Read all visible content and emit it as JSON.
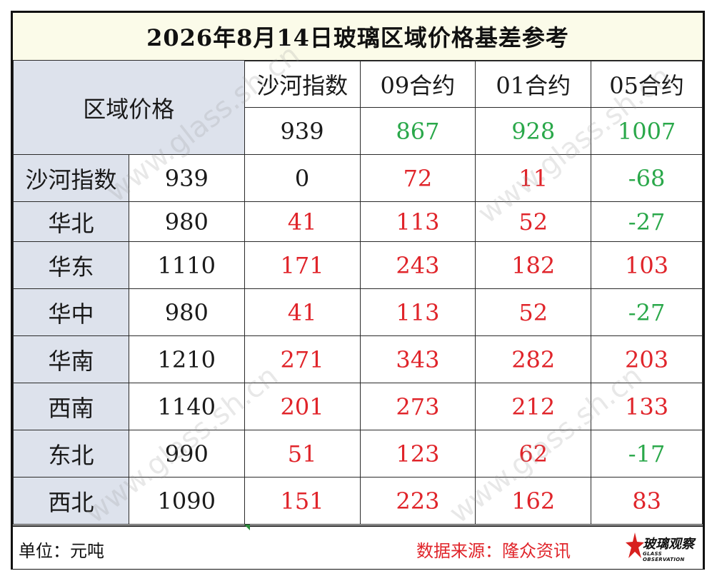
{
  "title": "2026年8月14日玻璃区域价格基差参考",
  "header": {
    "region_price_label": "区域价格",
    "columns": [
      {
        "label": "沙河指数",
        "value": "939"
      },
      {
        "label": "09合约",
        "value": "867"
      },
      {
        "label": "01合约",
        "value": "928"
      },
      {
        "label": "05合约",
        "value": "1007"
      }
    ]
  },
  "rows": [
    {
      "region": "沙河指数",
      "price": "939",
      "basis": [
        "0",
        "72",
        "11",
        "-68"
      ]
    },
    {
      "region": "华北",
      "price": "980",
      "basis": [
        "41",
        "113",
        "52",
        "-27"
      ]
    },
    {
      "region": "华东",
      "price": "1110",
      "basis": [
        "171",
        "243",
        "182",
        "103"
      ]
    },
    {
      "region": "华中",
      "price": "980",
      "basis": [
        "41",
        "113",
        "52",
        "-27"
      ]
    },
    {
      "region": "华南",
      "price": "1210",
      "basis": [
        "271",
        "343",
        "282",
        "203"
      ]
    },
    {
      "region": "西南",
      "price": "1140",
      "basis": [
        "201",
        "273",
        "212",
        "133"
      ]
    },
    {
      "region": "东北",
      "price": "990",
      "basis": [
        "51",
        "123",
        "62",
        "-17"
      ]
    },
    {
      "region": "西北",
      "price": "1090",
      "basis": [
        "151",
        "223",
        "162",
        "83"
      ]
    }
  ],
  "footer": {
    "unit": "单位：元吨",
    "source": "数据来源：隆众资讯",
    "logo_name": "玻璃观察",
    "logo_sub": "GLASS OBSERVATION"
  },
  "watermark": "www.glass.sh.cn",
  "colors": {
    "positive": "#e0242a",
    "negative": "#2aa84a",
    "header_bg": "#dde2ec",
    "title_bg": "#fbfbe9"
  }
}
